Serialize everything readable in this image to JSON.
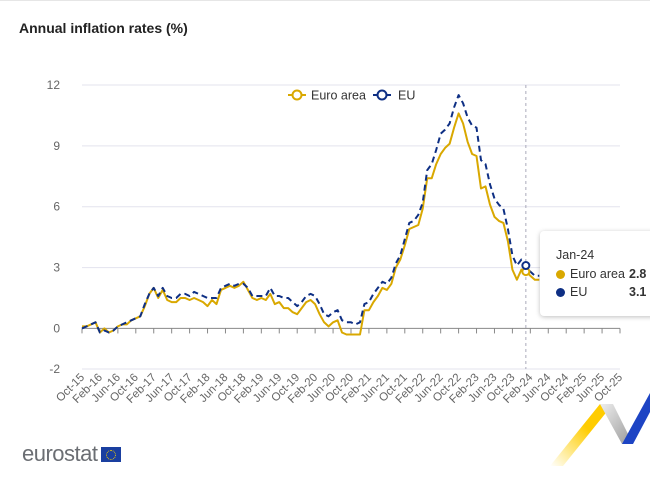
{
  "title": "Annual inflation rates (%)",
  "colors": {
    "euro_area": "#d9a800",
    "eu": "#0e2f84",
    "grid": "#e6e6f0"
  },
  "chart_data": {
    "type": "line",
    "title": "Annual inflation rates (%)",
    "xlabel": "",
    "ylabel": "",
    "ylim": [
      -2,
      12
    ],
    "yticks": [
      -2,
      0,
      3,
      6,
      9,
      12
    ],
    "x_range": [
      "Oct-15",
      "Oct-25"
    ],
    "start_month": "Oct-15",
    "xtick_labels": [
      "Oct-15",
      "Feb-16",
      "Jun-16",
      "Oct-16",
      "Feb-17",
      "Jun-17",
      "Oct-17",
      "Feb-18",
      "Jun-18",
      "Oct-18",
      "Feb-19",
      "Jun-19",
      "Oct-19",
      "Feb-20",
      "Jun-20",
      "Oct-20",
      "Feb-21",
      "Jun-21",
      "Oct-21",
      "Feb-22",
      "Jun-22",
      "Oct-22",
      "Feb-23",
      "Jun-23",
      "Oct-23",
      "Feb-24",
      "Jun-24",
      "Oct-24",
      "Feb-25",
      "Jun-25",
      "Oct-25"
    ],
    "grid": true,
    "legend_position": "top-center",
    "series": [
      {
        "name": "Euro area",
        "style": "solid",
        "values": [
          0.1,
          0.1,
          0.2,
          0.3,
          -0.2,
          0.0,
          -0.2,
          -0.1,
          0.1,
          0.2,
          0.2,
          0.4,
          0.5,
          0.6,
          1.1,
          1.7,
          2.0,
          1.5,
          1.9,
          1.4,
          1.3,
          1.3,
          1.5,
          1.5,
          1.4,
          1.5,
          1.4,
          1.3,
          1.1,
          1.4,
          1.2,
          1.9,
          2.0,
          2.1,
          2.0,
          2.1,
          2.3,
          1.9,
          1.5,
          1.4,
          1.5,
          1.4,
          1.7,
          1.2,
          1.3,
          1.0,
          1.0,
          0.8,
          0.7,
          1.0,
          1.3,
          1.4,
          1.2,
          0.7,
          0.3,
          0.1,
          0.3,
          0.4,
          -0.2,
          -0.3,
          -0.3,
          -0.3,
          -0.3,
          0.9,
          0.9,
          1.3,
          1.6,
          2.0,
          1.9,
          2.2,
          3.0,
          3.4,
          4.1,
          4.9,
          5.0,
          5.1,
          5.9,
          7.4,
          7.4,
          8.1,
          8.6,
          8.9,
          9.1,
          9.9,
          10.6,
          10.1,
          9.2,
          8.6,
          8.5,
          6.9,
          7.0,
          6.1,
          5.5,
          5.3,
          5.2,
          4.3,
          2.9,
          2.4,
          2.9,
          2.8,
          2.6,
          2.4,
          2.4
        ]
      },
      {
        "name": "EU",
        "style": "dashed",
        "values": [
          0.0,
          0.1,
          0.2,
          0.3,
          -0.2,
          -0.1,
          -0.2,
          -0.1,
          0.1,
          0.2,
          0.3,
          0.4,
          0.5,
          0.6,
          1.2,
          1.7,
          2.0,
          1.6,
          2.0,
          1.6,
          1.5,
          1.5,
          1.7,
          1.7,
          1.6,
          1.8,
          1.7,
          1.6,
          1.5,
          1.5,
          1.5,
          2.0,
          2.1,
          2.2,
          2.1,
          2.2,
          2.2,
          2.0,
          1.6,
          1.6,
          1.6,
          1.6,
          2.0,
          1.6,
          1.6,
          1.5,
          1.5,
          1.3,
          1.1,
          1.3,
          1.6,
          1.7,
          1.6,
          1.2,
          0.7,
          0.6,
          0.8,
          0.9,
          0.4,
          0.3,
          0.3,
          0.2,
          0.3,
          1.2,
          1.3,
          1.7,
          2.0,
          2.3,
          2.2,
          2.5,
          3.2,
          3.6,
          4.4,
          5.2,
          5.3,
          5.6,
          6.2,
          7.8,
          8.1,
          8.8,
          9.6,
          9.8,
          10.1,
          10.9,
          11.5,
          11.1,
          10.4,
          10.0,
          9.9,
          8.3,
          8.1,
          7.1,
          6.4,
          6.1,
          5.9,
          4.9,
          3.6,
          3.1,
          3.4,
          3.1,
          2.8,
          2.6,
          2.6
        ]
      }
    ]
  },
  "tooltip": {
    "date": "Jan-24",
    "rows": [
      {
        "label": "Euro area",
        "value": "2.8"
      },
      {
        "label": "EU",
        "value": "3.1"
      }
    ]
  },
  "logo": {
    "text": "eurostat"
  }
}
